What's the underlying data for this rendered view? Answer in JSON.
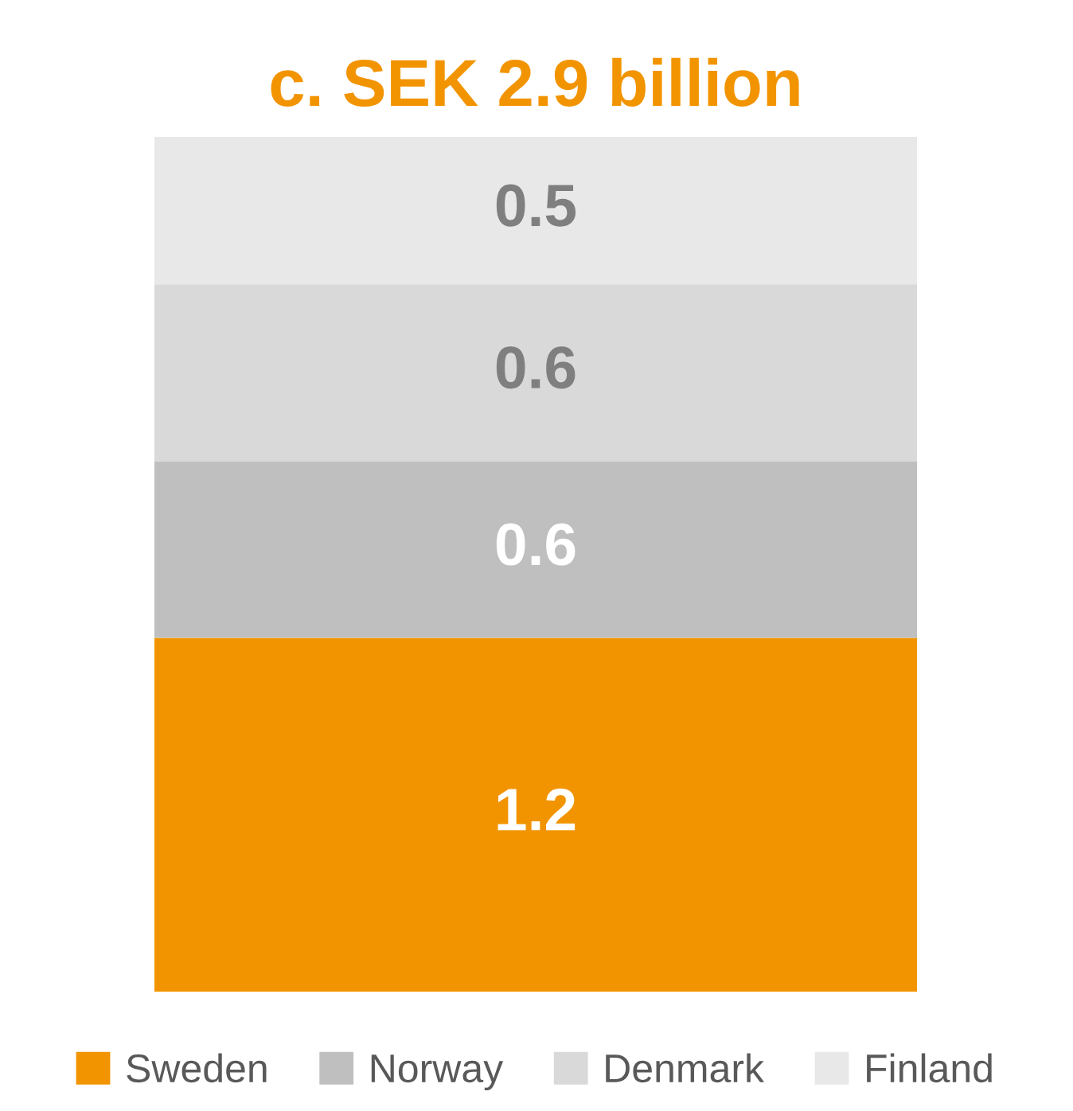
{
  "chart_data": {
    "type": "bar",
    "title": "c. SEK 2.9 billion",
    "categories": [
      null
    ],
    "stacked": true,
    "data_labels": true,
    "legend": "bottom",
    "grid": false,
    "series": [
      {
        "name": "Sweden",
        "color": "#f29400",
        "values": [
          1.2
        ]
      },
      {
        "name": "Norway",
        "color": "#bfbfbf",
        "values": [
          0.6
        ]
      },
      {
        "name": "Denmark",
        "color": "#d9d9d9",
        "values": [
          0.6
        ]
      },
      {
        "name": "Finland",
        "color": "#e8e8e8",
        "values": [
          0.5
        ]
      }
    ]
  }
}
